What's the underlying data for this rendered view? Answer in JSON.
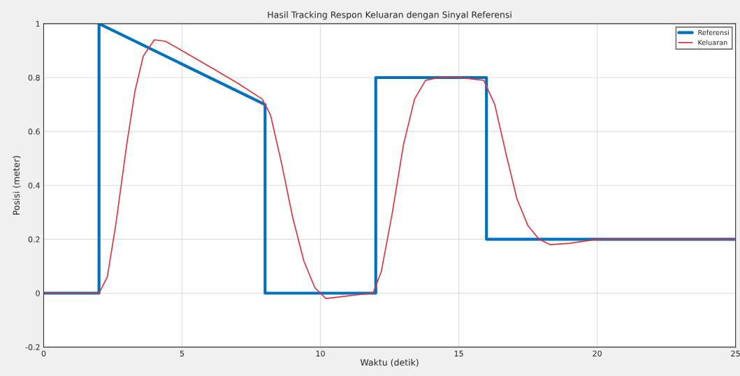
{
  "chart_data": {
    "type": "line",
    "title": "Hasil Tracking Respon Keluaran dengan Sinyal Referensi",
    "xlabel": "Waktu (detik)",
    "ylabel": "Posisi (meter)",
    "series": [
      {
        "name": "Referensi",
        "color": "#0072bd",
        "x": [
          0,
          2,
          2,
          8,
          8,
          12,
          12,
          16,
          16,
          25
        ],
        "values": [
          0,
          0,
          1,
          0.7,
          0,
          0,
          0.8,
          0.8,
          0.2,
          0.2
        ]
      },
      {
        "name": "Keluaran",
        "color": "#e0323c",
        "x": [
          0,
          2,
          2.3,
          2.6,
          3.0,
          3.3,
          3.6,
          4.0,
          4.4,
          5,
          6,
          7,
          7.9,
          8.2,
          8.6,
          9.0,
          9.4,
          9.8,
          10.2,
          11,
          11.9,
          12.2,
          12.6,
          13,
          13.4,
          13.8,
          14.3,
          15,
          15.9,
          16.3,
          16.7,
          17.1,
          17.5,
          17.9,
          18.3,
          19,
          20,
          25
        ],
        "values": [
          0,
          0,
          0.06,
          0.25,
          0.55,
          0.75,
          0.88,
          0.94,
          0.935,
          0.9,
          0.84,
          0.78,
          0.72,
          0.66,
          0.48,
          0.28,
          0.12,
          0.02,
          -0.02,
          -0.01,
          0,
          0.08,
          0.3,
          0.55,
          0.72,
          0.79,
          0.8,
          0.8,
          0.79,
          0.7,
          0.52,
          0.35,
          0.25,
          0.2,
          0.18,
          0.185,
          0.2,
          0.2
        ]
      }
    ],
    "xlim": [
      0,
      25
    ],
    "xticks": [
      0,
      5,
      10,
      15,
      20,
      25
    ],
    "ylim": [
      -0.2,
      1
    ],
    "yticks": [
      -0.2,
      0,
      0.2,
      0.4,
      0.6,
      0.8,
      1
    ],
    "grid": true,
    "legend": "top right"
  }
}
